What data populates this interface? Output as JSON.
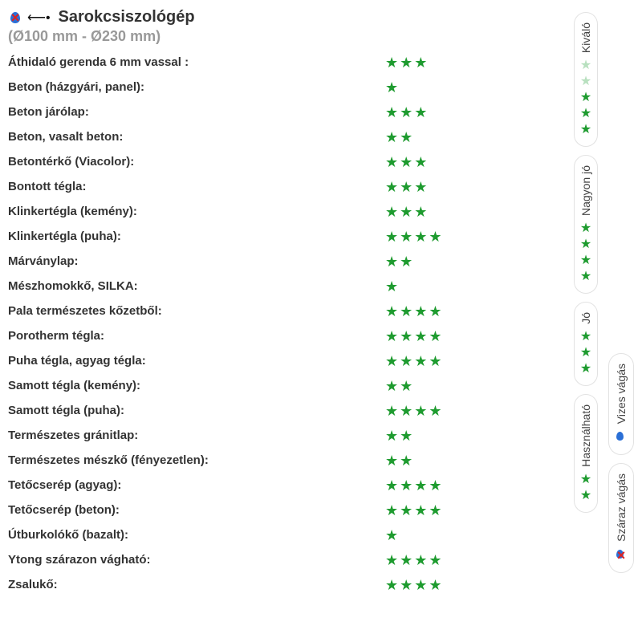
{
  "header": {
    "title": "Sarokcsiszológép",
    "subtitle": "(Ø100 mm - Ø230 mm)"
  },
  "star_color": "#1e9b2f",
  "star_faded_color": "#b8e0bf",
  "text_color": "#333333",
  "muted_color": "#999999",
  "rows": [
    {
      "label": "Áthidaló gerenda 6 mm vassal :",
      "stars": 3
    },
    {
      "label": "Beton (házgyári, panel):",
      "stars": 1
    },
    {
      "label": "Beton járólap:",
      "stars": 3
    },
    {
      "label": "Beton, vasalt beton:",
      "stars": 2
    },
    {
      "label": "Betontérkő (Viacolor):",
      "stars": 3
    },
    {
      "label": "Bontott tégla:",
      "stars": 3
    },
    {
      "label": "Klinkertégla (kemény):",
      "stars": 3
    },
    {
      "label": "Klinkertégla (puha):",
      "stars": 4
    },
    {
      "label": "Márványlap:",
      "stars": 2
    },
    {
      "label": "Mészhomokkő, SILKA:",
      "stars": 1
    },
    {
      "label": "Pala természetes kőzetből:",
      "stars": 4
    },
    {
      "label": "Porotherm tégla:",
      "stars": 4
    },
    {
      "label": "Puha tégla, agyag tégla:",
      "stars": 4
    },
    {
      "label": "Samott tégla (kemény):",
      "stars": 2
    },
    {
      "label": "Samott tégla (puha):",
      "stars": 4
    },
    {
      "label": "Természetes gránitlap:",
      "stars": 2
    },
    {
      "label": "Természetes mészkő (fényezetlen):",
      "stars": 2
    },
    {
      "label": "Tetőcserép (agyag):",
      "stars": 4
    },
    {
      "label": "Tetőcserép (beton):",
      "stars": 4
    },
    {
      "label": "Útburkolókő (bazalt):",
      "stars": 1
    },
    {
      "label": "Ytong szárazon vágható:",
      "stars": 4
    },
    {
      "label": "Zsalukő:",
      "stars": 4
    }
  ],
  "legend_rail1": [
    {
      "label": "Kiváló",
      "stars": 5,
      "faded": [
        0,
        1
      ]
    },
    {
      "label": "Nagyon jó",
      "stars": 4,
      "faded": []
    },
    {
      "label": "Jó",
      "stars": 3,
      "faded": []
    },
    {
      "label": "Használható",
      "stars": 2,
      "faded": []
    }
  ],
  "legend_rail2": [
    {
      "label": "Vizes vágás",
      "icon": "water"
    },
    {
      "label": "Száraz vágás",
      "icon": "no-water"
    }
  ]
}
